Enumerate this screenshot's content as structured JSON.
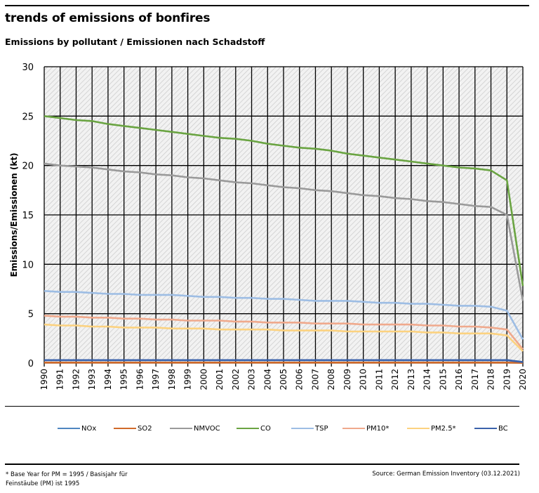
{
  "header": {
    "title": "trends of emissions of bonfires",
    "subtitle": "Emissions by pollutant / Emissionen nach Schadstoff"
  },
  "footer": {
    "footnote": "* Base Year for PM = 1995 / Basisjahr für Feinstäube (PM) ist 1995",
    "source": "Source: German Emission Inventory (03.12.2021)"
  },
  "chart_data": {
    "type": "line",
    "title": "trends of emissions of bonfires",
    "subtitle": "Emissions by pollutant / Emissionen nach Schadstoff",
    "xlabel": "",
    "ylabel": "Emissions/Emissionen (kt)",
    "ylim": [
      0,
      30
    ],
    "yticks": [
      0,
      5,
      10,
      15,
      20,
      25,
      30
    ],
    "grid": true,
    "legend_position": "bottom",
    "x": [
      1990,
      1991,
      1992,
      1993,
      1994,
      1995,
      1996,
      1997,
      1998,
      1999,
      2000,
      2001,
      2002,
      2003,
      2004,
      2005,
      2006,
      2007,
      2008,
      2009,
      2010,
      2011,
      2012,
      2013,
      2014,
      2015,
      2016,
      2017,
      2018,
      2019,
      2020
    ],
    "series": [
      {
        "name": "NOx",
        "color": "#4f86c0",
        "values": [
          0.3,
          0.3,
          0.3,
          0.3,
          0.3,
          0.3,
          0.3,
          0.3,
          0.3,
          0.3,
          0.3,
          0.3,
          0.3,
          0.3,
          0.3,
          0.3,
          0.3,
          0.3,
          0.3,
          0.3,
          0.3,
          0.3,
          0.3,
          0.3,
          0.3,
          0.3,
          0.3,
          0.3,
          0.3,
          0.3,
          0.1
        ]
      },
      {
        "name": "SO2",
        "color": "#d06a2a",
        "values": [
          0.05,
          0.05,
          0.05,
          0.05,
          0.05,
          0.05,
          0.05,
          0.05,
          0.05,
          0.05,
          0.05,
          0.05,
          0.05,
          0.05,
          0.05,
          0.05,
          0.05,
          0.05,
          0.05,
          0.05,
          0.05,
          0.05,
          0.05,
          0.05,
          0.05,
          0.05,
          0.05,
          0.05,
          0.05,
          0.05,
          0.02
        ]
      },
      {
        "name": "NMVOC",
        "color": "#9a9a9a",
        "values": [
          20.2,
          20.0,
          19.9,
          19.8,
          19.6,
          19.4,
          19.3,
          19.1,
          19.0,
          18.8,
          18.7,
          18.5,
          18.3,
          18.2,
          18.0,
          17.8,
          17.7,
          17.5,
          17.4,
          17.2,
          17.0,
          16.9,
          16.7,
          16.6,
          16.4,
          16.3,
          16.1,
          15.9,
          15.8,
          15.0,
          6.3
        ]
      },
      {
        "name": "CO",
        "color": "#6aa442",
        "values": [
          25.0,
          24.8,
          24.6,
          24.5,
          24.2,
          24.0,
          23.8,
          23.6,
          23.4,
          23.2,
          23.0,
          22.8,
          22.7,
          22.5,
          22.2,
          22.0,
          21.8,
          21.7,
          21.5,
          21.2,
          21.0,
          20.8,
          20.6,
          20.4,
          20.2,
          20.0,
          19.8,
          19.7,
          19.5,
          18.5,
          7.8
        ]
      },
      {
        "name": "TSP",
        "color": "#9dbde4",
        "values": [
          7.3,
          7.2,
          7.2,
          7.1,
          7.0,
          7.0,
          6.9,
          6.9,
          6.9,
          6.8,
          6.7,
          6.7,
          6.6,
          6.6,
          6.5,
          6.5,
          6.4,
          6.3,
          6.3,
          6.3,
          6.2,
          6.1,
          6.1,
          6.0,
          6.0,
          5.9,
          5.8,
          5.8,
          5.7,
          5.3,
          2.4
        ]
      },
      {
        "name": "PM10*",
        "color": "#f0a98c",
        "values": [
          4.8,
          4.7,
          4.7,
          4.6,
          4.6,
          4.5,
          4.5,
          4.4,
          4.4,
          4.3,
          4.3,
          4.3,
          4.2,
          4.2,
          4.1,
          4.1,
          4.1,
          4.0,
          4.0,
          4.0,
          3.9,
          3.9,
          3.9,
          3.9,
          3.8,
          3.8,
          3.7,
          3.7,
          3.6,
          3.4,
          1.4
        ]
      },
      {
        "name": "PM2.5*",
        "color": "#fcd27f",
        "values": [
          3.9,
          3.8,
          3.8,
          3.7,
          3.7,
          3.6,
          3.6,
          3.6,
          3.5,
          3.5,
          3.5,
          3.4,
          3.4,
          3.4,
          3.4,
          3.3,
          3.3,
          3.3,
          3.3,
          3.2,
          3.2,
          3.2,
          3.2,
          3.2,
          3.1,
          3.1,
          3.0,
          3.0,
          3.0,
          2.8,
          1.2
        ]
      },
      {
        "name": "BC",
        "color": "#3b62ab",
        "values": [
          0.3,
          0.3,
          0.3,
          0.3,
          0.3,
          0.3,
          0.3,
          0.3,
          0.3,
          0.3,
          0.3,
          0.3,
          0.3,
          0.3,
          0.3,
          0.3,
          0.3,
          0.3,
          0.3,
          0.3,
          0.3,
          0.3,
          0.3,
          0.3,
          0.3,
          0.3,
          0.3,
          0.3,
          0.3,
          0.3,
          0.1
        ]
      }
    ]
  }
}
